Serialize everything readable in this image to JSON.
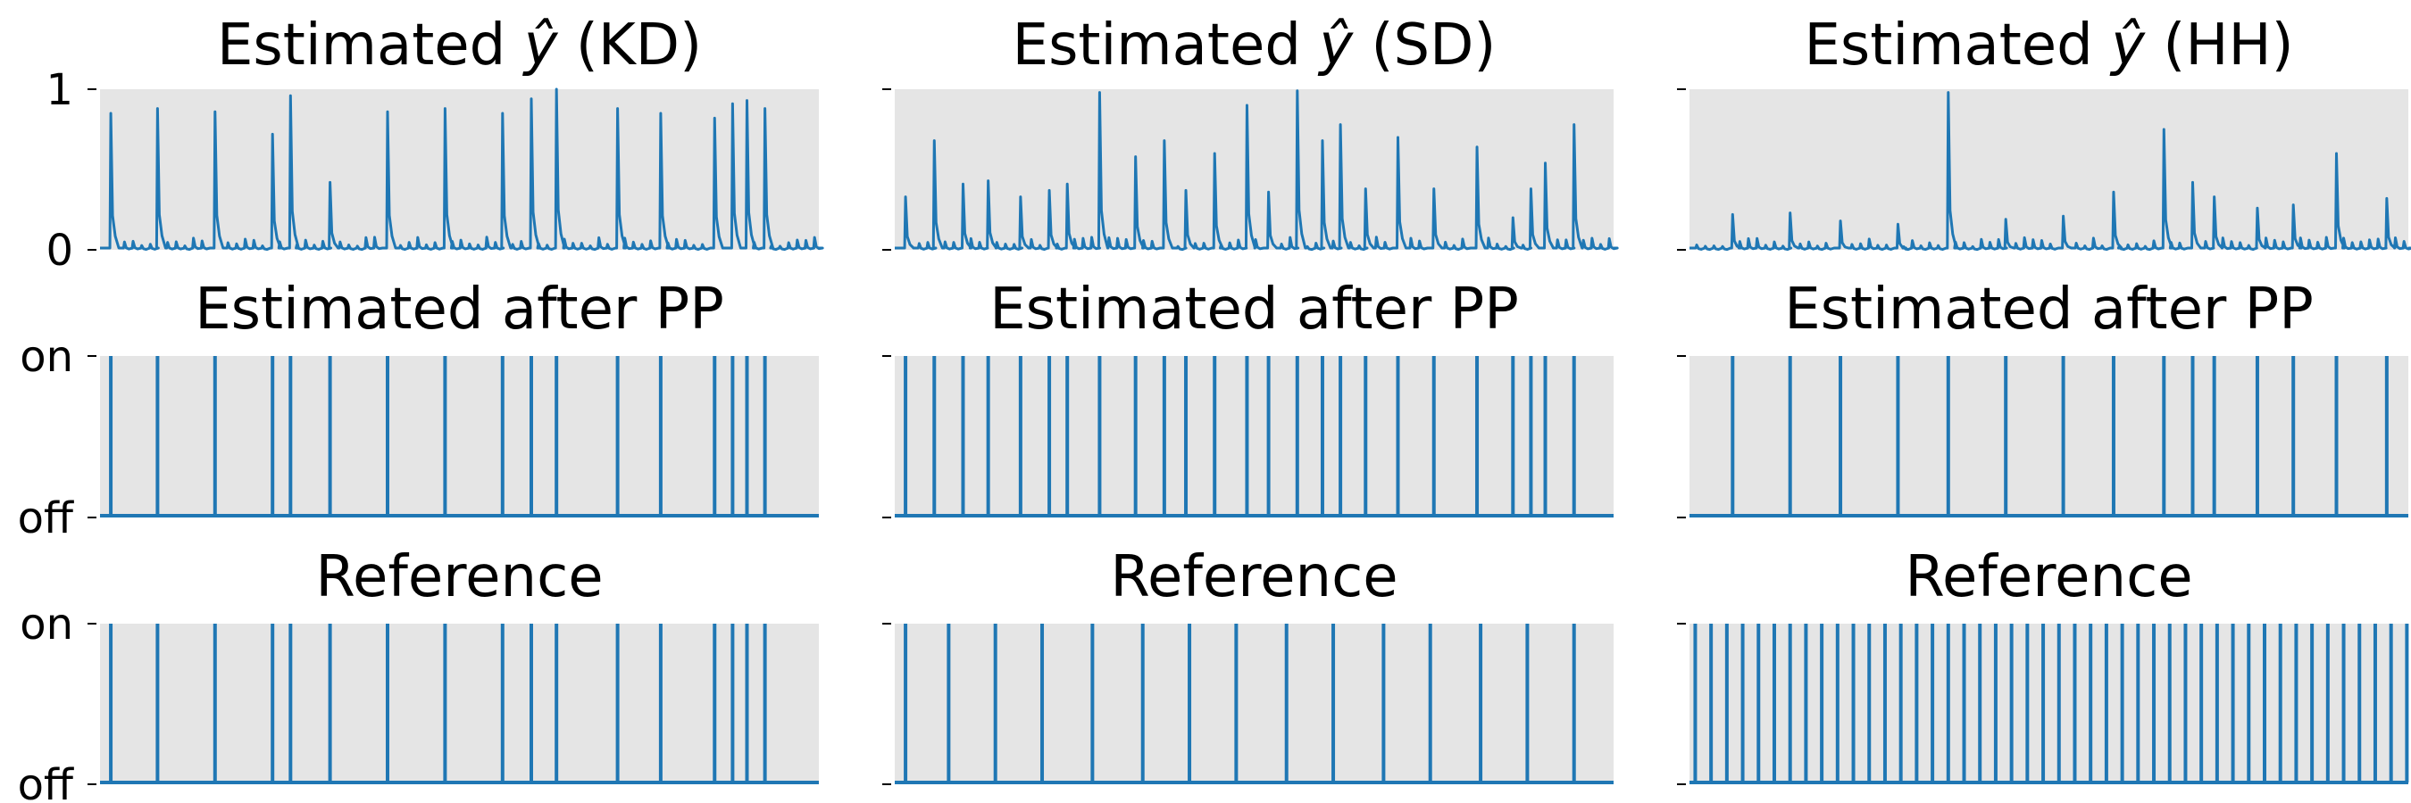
{
  "figure": {
    "columns": [
      {
        "title_prefix": "Estimated ",
        "title_symbol": "ŷ",
        "title_suffix": " (KD)"
      },
      {
        "title_prefix": "Estimated ",
        "title_symbol": "ŷ",
        "title_suffix": " (SD)"
      },
      {
        "title_prefix": "Estimated ",
        "title_symbol": "ŷ",
        "title_suffix": " (HH)"
      }
    ],
    "row_titles": [
      "",
      "Estimated after PP",
      "Reference"
    ],
    "y_ticks": {
      "row1": [
        "0",
        "1"
      ],
      "row2": [
        "off",
        "on"
      ],
      "row3": [
        "off",
        "on"
      ]
    }
  },
  "chart_data": [
    {
      "type": "line",
      "panel": "KD-estimated",
      "title": "Estimated ŷ (KD)",
      "ylim": [
        0,
        1
      ],
      "y_ticks": [
        0,
        1
      ],
      "peaks": [
        [
          0.015,
          0.85
        ],
        [
          0.08,
          0.88
        ],
        [
          0.16,
          0.86
        ],
        [
          0.24,
          0.72
        ],
        [
          0.265,
          0.96
        ],
        [
          0.32,
          0.42
        ],
        [
          0.4,
          0.86
        ],
        [
          0.48,
          0.88
        ],
        [
          0.56,
          0.85
        ],
        [
          0.6,
          0.94
        ],
        [
          0.635,
          1.0
        ],
        [
          0.72,
          0.88
        ],
        [
          0.78,
          0.85
        ],
        [
          0.855,
          0.82
        ],
        [
          0.88,
          0.91
        ],
        [
          0.9,
          0.93
        ],
        [
          0.925,
          0.88
        ]
      ]
    },
    {
      "type": "line",
      "panel": "SD-estimated",
      "title": "Estimated ŷ (SD)",
      "ylim": [
        0,
        1
      ],
      "y_ticks": [
        0,
        1
      ],
      "peaks": [
        [
          0.015,
          0.33
        ],
        [
          0.055,
          0.68
        ],
        [
          0.095,
          0.41
        ],
        [
          0.13,
          0.43
        ],
        [
          0.175,
          0.33
        ],
        [
          0.215,
          0.37
        ],
        [
          0.24,
          0.41
        ],
        [
          0.285,
          0.98
        ],
        [
          0.335,
          0.58
        ],
        [
          0.375,
          0.68
        ],
        [
          0.405,
          0.37
        ],
        [
          0.445,
          0.6
        ],
        [
          0.49,
          0.9
        ],
        [
          0.52,
          0.36
        ],
        [
          0.56,
          0.99
        ],
        [
          0.595,
          0.68
        ],
        [
          0.62,
          0.78
        ],
        [
          0.655,
          0.38
        ],
        [
          0.7,
          0.7
        ],
        [
          0.75,
          0.38
        ],
        [
          0.81,
          0.64
        ],
        [
          0.86,
          0.2
        ],
        [
          0.885,
          0.38
        ],
        [
          0.905,
          0.54
        ],
        [
          0.945,
          0.78
        ]
      ]
    },
    {
      "type": "line",
      "panel": "HH-estimated",
      "title": "Estimated ŷ (HH)",
      "ylim": [
        0,
        1
      ],
      "y_ticks": [
        0,
        1
      ],
      "peaks": [
        [
          0.06,
          0.22
        ],
        [
          0.14,
          0.23
        ],
        [
          0.21,
          0.18
        ],
        [
          0.29,
          0.16
        ],
        [
          0.36,
          0.98
        ],
        [
          0.44,
          0.19
        ],
        [
          0.52,
          0.21
        ],
        [
          0.59,
          0.36
        ],
        [
          0.66,
          0.75
        ],
        [
          0.7,
          0.42
        ],
        [
          0.73,
          0.33
        ],
        [
          0.79,
          0.26
        ],
        [
          0.84,
          0.28
        ],
        [
          0.9,
          0.6
        ],
        [
          0.97,
          0.32
        ]
      ]
    },
    {
      "type": "line",
      "panel": "KD-after-PP",
      "title": "Estimated after PP",
      "y_ticks": [
        "off",
        "on"
      ],
      "onsets": [
        0.015,
        0.08,
        0.16,
        0.24,
        0.265,
        0.32,
        0.4,
        0.48,
        0.56,
        0.6,
        0.635,
        0.72,
        0.78,
        0.855,
        0.88,
        0.9,
        0.925
      ]
    },
    {
      "type": "line",
      "panel": "SD-after-PP",
      "title": "Estimated after PP",
      "y_ticks": [
        "off",
        "on"
      ],
      "onsets": [
        0.015,
        0.055,
        0.095,
        0.13,
        0.175,
        0.215,
        0.24,
        0.285,
        0.335,
        0.375,
        0.405,
        0.445,
        0.49,
        0.52,
        0.56,
        0.595,
        0.62,
        0.655,
        0.7,
        0.75,
        0.81,
        0.86,
        0.885,
        0.905,
        0.945
      ]
    },
    {
      "type": "line",
      "panel": "HH-after-PP",
      "title": "Estimated after PP",
      "y_ticks": [
        "off",
        "on"
      ],
      "onsets": [
        0.06,
        0.14,
        0.21,
        0.29,
        0.36,
        0.44,
        0.52,
        0.59,
        0.66,
        0.7,
        0.73,
        0.79,
        0.84,
        0.9,
        0.97
      ]
    },
    {
      "type": "line",
      "panel": "KD-reference",
      "title": "Reference",
      "y_ticks": [
        "off",
        "on"
      ],
      "onsets": [
        0.015,
        0.08,
        0.16,
        0.24,
        0.265,
        0.32,
        0.4,
        0.48,
        0.56,
        0.6,
        0.635,
        0.72,
        0.78,
        0.855,
        0.88,
        0.9,
        0.925
      ]
    },
    {
      "type": "line",
      "panel": "SD-reference",
      "title": "Reference",
      "y_ticks": [
        "off",
        "on"
      ],
      "onsets": [
        0.015,
        0.075,
        0.14,
        0.205,
        0.275,
        0.345,
        0.41,
        0.475,
        0.545,
        0.61,
        0.68,
        0.745,
        0.815,
        0.88,
        0.945
      ]
    },
    {
      "type": "line",
      "panel": "HH-reference",
      "title": "Reference",
      "y_ticks": [
        "off",
        "on"
      ],
      "onsets": [
        0.008,
        0.03,
        0.052,
        0.074,
        0.096,
        0.118,
        0.14,
        0.162,
        0.184,
        0.206,
        0.228,
        0.25,
        0.272,
        0.294,
        0.316,
        0.338,
        0.36,
        0.382,
        0.404,
        0.426,
        0.448,
        0.47,
        0.492,
        0.514,
        0.536,
        0.558,
        0.58,
        0.602,
        0.624,
        0.646,
        0.668,
        0.69,
        0.712,
        0.734,
        0.756,
        0.778,
        0.8,
        0.822,
        0.844,
        0.866,
        0.888,
        0.91,
        0.932,
        0.954,
        0.976,
        0.998
      ]
    }
  ]
}
